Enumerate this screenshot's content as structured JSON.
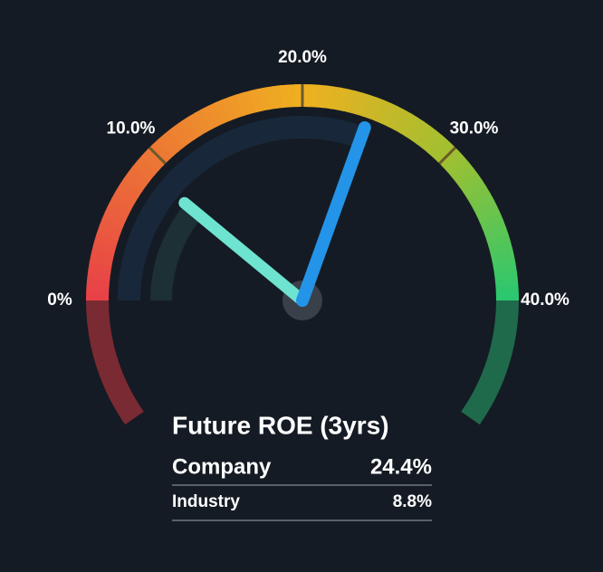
{
  "chart_data": {
    "type": "gauge",
    "title": "Future ROE (3yrs)",
    "ylim": [
      0,
      40
    ],
    "yticks": [
      {
        "value": 0,
        "label": "0%"
      },
      {
        "value": 10,
        "label": "10.0%"
      },
      {
        "value": 20,
        "label": "20.0%"
      },
      {
        "value": 30,
        "label": "30.0%"
      },
      {
        "value": 40,
        "label": "40.0%"
      }
    ],
    "series": [
      {
        "name": "Company",
        "color": "#2394e8",
        "values": [
          24.4
        ],
        "value_labels": [
          "24.4%"
        ]
      },
      {
        "name": "Industry",
        "color": "#6de3d0",
        "values": [
          8.8
        ],
        "value_labels": [
          "8.8%"
        ]
      }
    ]
  }
}
